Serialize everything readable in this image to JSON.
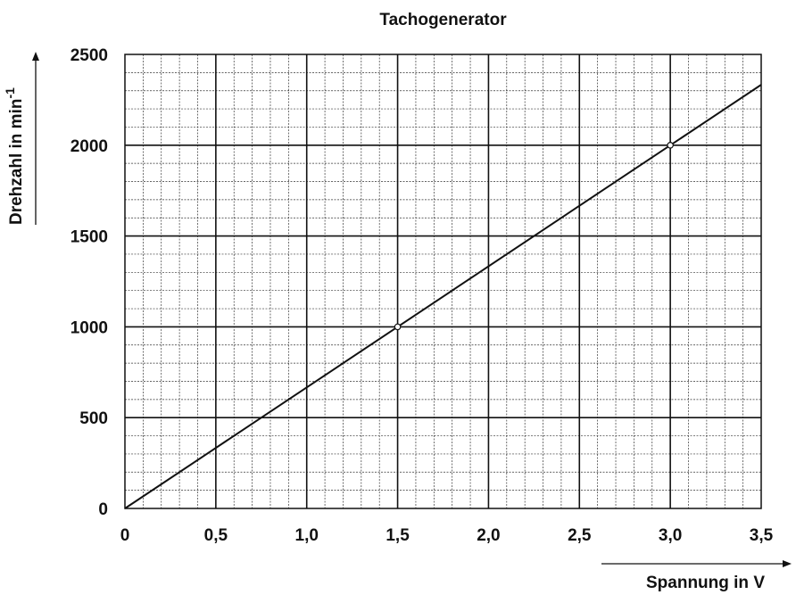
{
  "chart_data": {
    "type": "line",
    "title": "Tachogenerator",
    "xlabel": "Spannung in V",
    "ylabel_main": "Drehzahl in min",
    "ylabel_sup": "-1",
    "xlim": [
      0,
      3.5
    ],
    "ylim": [
      0,
      2500
    ],
    "x_major_step": 0.5,
    "y_major_step": 500,
    "x_minor_step": 0.1,
    "y_minor_step": 100,
    "grid": true,
    "x_tick_labels": [
      "0",
      "0,5",
      "1,0",
      "1,5",
      "2,0",
      "2,5",
      "3,0",
      "3,5"
    ],
    "y_tick_labels": [
      "0",
      "500",
      "1000",
      "1500",
      "2000",
      "2500"
    ],
    "series": [
      {
        "x": [
          0,
          3.5
        ],
        "y": [
          0,
          2333
        ]
      }
    ],
    "marked_points": [
      {
        "x": 1.5,
        "y": 1000
      },
      {
        "x": 3.0,
        "y": 2000
      }
    ]
  }
}
